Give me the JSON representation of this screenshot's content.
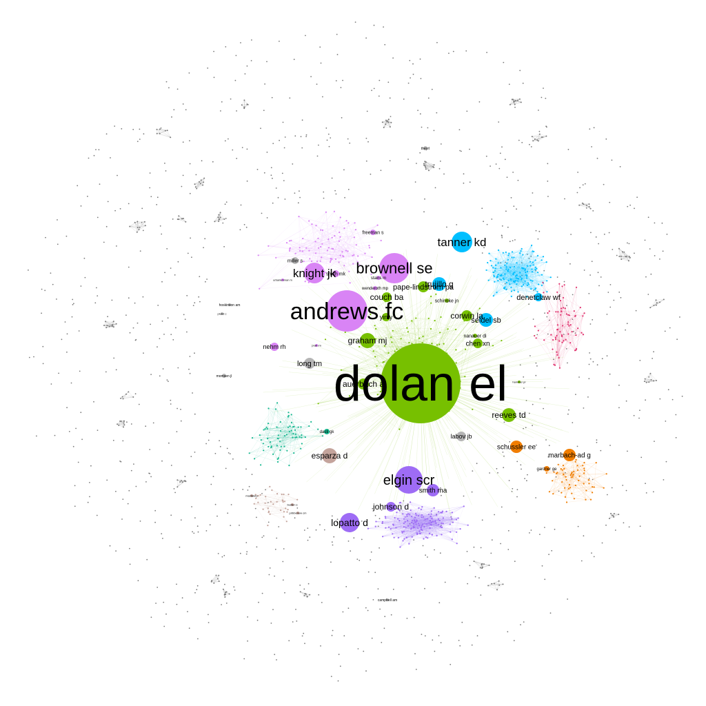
{
  "colors": {
    "green": "#77c000",
    "violet": "#d984f5",
    "blue": "#00bfff",
    "purple": "#9e6cf5",
    "teal": "#17b890",
    "orange": "#f07d00",
    "red": "#e0326e",
    "brown": "#c4a49c",
    "gray": "#b5b5b5",
    "tiny": "#7a7a7a"
  },
  "communities": [
    {
      "name": "green-community",
      "color": "green"
    },
    {
      "name": "violet-community",
      "color": "violet"
    },
    {
      "name": "blue-community",
      "color": "blue"
    },
    {
      "name": "purple-community",
      "color": "purple"
    },
    {
      "name": "teal-community",
      "color": "teal"
    },
    {
      "name": "orange-community",
      "color": "orange"
    },
    {
      "name": "red-community",
      "color": "red"
    },
    {
      "name": "brown-community",
      "color": "brown"
    }
  ],
  "nodes": [
    {
      "id": "dolan-el",
      "label": "dolan el",
      "color": "green"
    },
    {
      "id": "andrews-fc",
      "label": "andrews fc",
      "color": "violet"
    },
    {
      "id": "brownell-se",
      "label": "brownell se",
      "color": "violet"
    },
    {
      "id": "knight-jk",
      "label": "knight jk",
      "color": "violet"
    },
    {
      "id": "tanner-kd",
      "label": "tanner kd",
      "color": "blue"
    },
    {
      "id": "trujillo-g",
      "label": "trujillo g",
      "color": "blue"
    },
    {
      "id": "denetclaw-wf",
      "label": "denetclaw wf",
      "color": "blue"
    },
    {
      "id": "seidel-sb",
      "label": "seidel sb",
      "color": "blue"
    },
    {
      "id": "elgin-scr",
      "label": "elgin scr",
      "color": "purple"
    },
    {
      "id": "smith-ma",
      "label": "smith ma",
      "color": "purple"
    },
    {
      "id": "johnson-d",
      "label": "johnson d",
      "color": "purple"
    },
    {
      "id": "lopatto-d",
      "label": "lopatto d",
      "color": "purple"
    },
    {
      "id": "couch-ba",
      "label": "couch ba",
      "color": "green"
    },
    {
      "id": "pape-lindstrom-pa",
      "label": "pape-lindstrom pa",
      "color": "green"
    },
    {
      "id": "corwin-la",
      "label": "corwin la",
      "color": "green"
    },
    {
      "id": "graham-mj",
      "label": "graham mj",
      "color": "green"
    },
    {
      "id": "chen-xn",
      "label": "chen xn",
      "color": "green"
    },
    {
      "id": "reeves-td",
      "label": "reeves td",
      "color": "green"
    },
    {
      "id": "auerbach-a",
      "label": "auerbach a",
      "color": "green"
    },
    {
      "id": "yin-y",
      "label": "yin y",
      "color": "green"
    },
    {
      "id": "schussler-ee",
      "label": "schussler ee",
      "color": "orange"
    },
    {
      "id": "marbach-ad-g",
      "label": "marbach-ad g",
      "color": "orange"
    },
    {
      "id": "esparza-d",
      "label": "esparza d",
      "color": "brown"
    },
    {
      "id": "long-tm",
      "label": "long tm",
      "color": "gray"
    },
    {
      "id": "labov-jb",
      "label": "labov jb",
      "color": "gray"
    },
    {
      "id": "nehm-rh",
      "label": "nehm rh",
      "color": "violet"
    },
    {
      "id": "freeman-s",
      "label": "freeman s",
      "color": "violet"
    },
    {
      "id": "miller-s",
      "label": "miller s",
      "color": "gray"
    },
    {
      "id": "smith-mk",
      "label": "smith mk",
      "color": "violet"
    },
    {
      "id": "wenderoth-mp",
      "label": "wenderoth mp",
      "color": "violet"
    },
    {
      "id": "stains-m",
      "label": "stains m",
      "color": "violet"
    },
    {
      "id": "schinske-jn",
      "label": "schinske jn",
      "color": "green"
    },
    {
      "id": "nanauer-di",
      "label": "nanauer di",
      "color": "green"
    },
    {
      "id": "gardner-ge",
      "label": "gardner ge",
      "color": "orange"
    },
    {
      "id": "hoskinson-am",
      "label": "hoskinson am",
      "color": "gray"
    },
    {
      "id": "momsen-jl",
      "label": "momsen jl",
      "color": "gray"
    },
    {
      "id": "dasti-gk",
      "label": "dasti gk",
      "color": "teal"
    },
    {
      "id": "campbell-am",
      "label": "campbell am",
      "color": "gray"
    },
    {
      "id": "theyrl",
      "label": "theyrl",
      "color": "gray"
    },
    {
      "id": "urban-lehman-m",
      "label": "urbanlehman m",
      "color": "violet"
    },
    {
      "id": "plund-c",
      "label": "plund c",
      "color": "gray"
    },
    {
      "id": "prati-rm",
      "label": "prati rm",
      "color": "violet"
    },
    {
      "id": "hammer-pr",
      "label": "hammer pr",
      "color": "green"
    },
    {
      "id": "mastaler-p",
      "label": "mastalerp",
      "color": "brown"
    },
    {
      "id": "pribbenow-cm",
      "label": "pribbenow cm",
      "color": "brown"
    },
    {
      "id": "busten-s",
      "label": "busten s",
      "color": "brown"
    }
  ]
}
